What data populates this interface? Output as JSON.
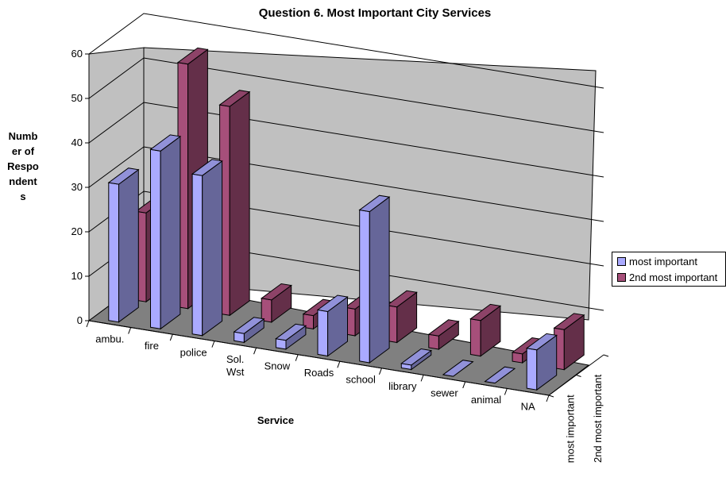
{
  "chart_data": {
    "type": "bar",
    "title": "Question 6. Most Important City Services",
    "xlabel": "Service",
    "ylabel": "Number of Respondents",
    "ylim": [
      0,
      60
    ],
    "yticks": [
      0,
      10,
      20,
      30,
      40,
      50,
      60
    ],
    "categories": [
      "ambu.",
      "fire",
      "police",
      "Sol. Wst",
      "Snow",
      "Roads",
      "school",
      "library",
      "sewer",
      "animal",
      "NA"
    ],
    "series": [
      {
        "name": "most important",
        "color": "#aaaaff",
        "values": [
          31,
          40,
          36,
          2,
          2,
          10,
          34,
          1,
          0,
          0,
          9
        ]
      },
      {
        "name": "2nd most important",
        "color": "#a64f7a",
        "values": [
          20,
          55,
          47,
          5,
          3,
          6,
          8,
          3,
          8,
          2,
          9
        ]
      }
    ],
    "depth_labels": [
      "most important",
      "2nd most important"
    ],
    "grid": true,
    "legend_position": "right",
    "view": "3d-perspective"
  }
}
